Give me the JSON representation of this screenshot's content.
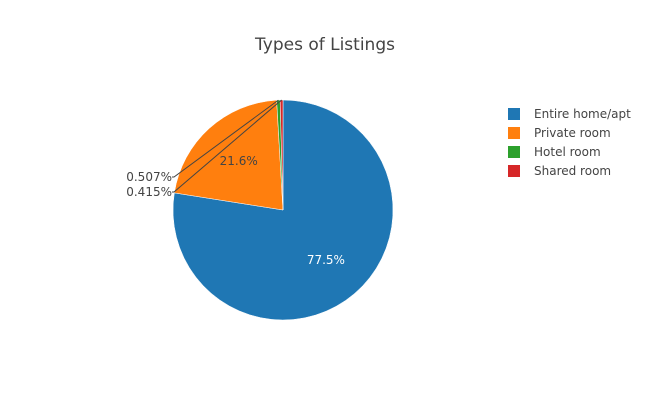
{
  "chart_data": {
    "type": "pie",
    "title": "Types of Listings",
    "slices": [
      {
        "label": "Entire home/apt",
        "value": 77.5,
        "text": "77.5%",
        "color": "#1f77b4"
      },
      {
        "label": "Private room",
        "value": 21.6,
        "text": "21.6%",
        "color": "#ff7f0e"
      },
      {
        "label": "Hotel room",
        "value": 0.507,
        "text": "0.507%",
        "color": "#2ca02c"
      },
      {
        "label": "Shared room",
        "value": 0.415,
        "text": "0.415%",
        "color": "#d62728"
      }
    ],
    "direction": "clockwise",
    "start": "12 o'clock",
    "legend_position": "right"
  }
}
